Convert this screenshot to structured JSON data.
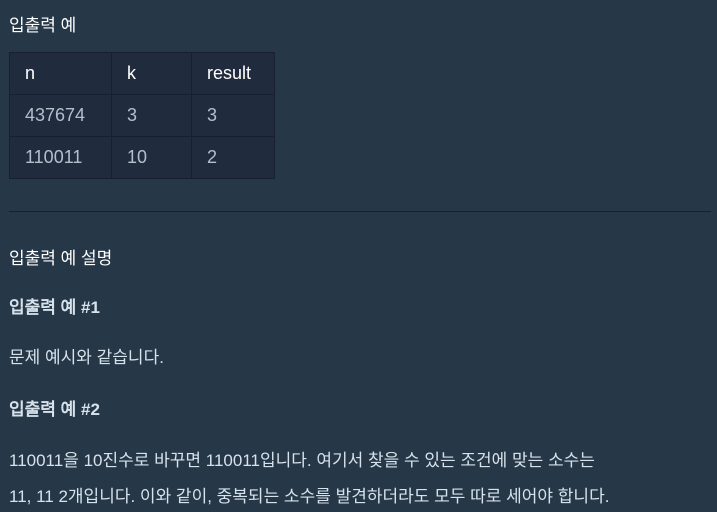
{
  "io_example": {
    "title": "입출력 예",
    "columns": [
      "n",
      "k",
      "result"
    ],
    "rows": [
      [
        "437674",
        "3",
        "3"
      ],
      [
        "110011",
        "10",
        "2"
      ]
    ]
  },
  "explanation": {
    "title": "입출력 예 설명",
    "example1": {
      "heading": "입출력 예 #1",
      "text": "문제 예시와 같습니다."
    },
    "example2": {
      "heading": "입출력 예 #2",
      "line1": "110011을 10진수로 바꾸면 110011입니다. 여기서 찾을 수 있는 조건에 맞는 소수는",
      "line2": "11, 11 2개입니다. 이와 같이, 중복되는 소수를 발견하더라도 모두 따로 세어야 합니다."
    }
  }
}
